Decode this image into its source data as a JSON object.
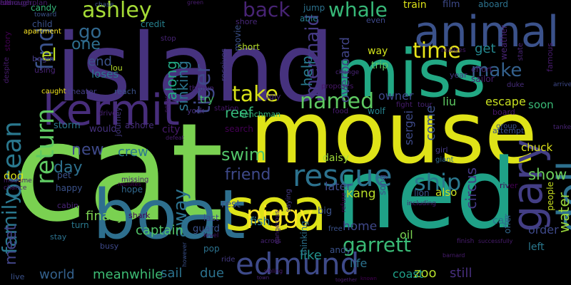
{
  "colors": {
    "background": "#000000",
    "palette": [
      "#440154",
      "#482878",
      "#3e4989",
      "#31688e",
      "#26828e",
      "#1f9e89",
      "#35b779",
      "#6ece58",
      "#b5de2b",
      "#fde725"
    ]
  },
  "words": [
    {
      "text": "cat",
      "color": "#7ad151",
      "weight": 1.0
    },
    {
      "text": "mouse",
      "color": "#dfe318",
      "weight": 0.92
    },
    {
      "text": "island",
      "color": "#46327e",
      "weight": 0.9
    },
    {
      "text": "ned",
      "color": "#1fa187",
      "weight": 0.87
    },
    {
      "text": "boat",
      "color": "#2e6f8e",
      "weight": 0.82
    },
    {
      "text": "miss",
      "color": "#22a884",
      "weight": 0.7
    },
    {
      "text": "sea",
      "color": "#dde318",
      "weight": 0.66
    },
    {
      "text": "animal",
      "color": "#3b528b",
      "weight": 0.6
    },
    {
      "text": "kermit",
      "color": "#472d7b",
      "weight": 0.55
    },
    {
      "text": "gary",
      "color": "#433e85",
      "weight": 0.52
    },
    {
      "text": "doll",
      "color": "#2d708e",
      "weight": 0.5
    },
    {
      "text": "rescue",
      "color": "#2c728e",
      "weight": 0.45
    },
    {
      "text": "edmund",
      "color": "#3e4a89",
      "weight": 0.42
    },
    {
      "text": "ocean",
      "color": "#2a788e",
      "weight": 0.38
    },
    {
      "text": "return",
      "color": "#5ec962",
      "weight": 0.35
    },
    {
      "text": "find",
      "color": "#3b528b",
      "weight": 0.35
    },
    {
      "text": "ashley",
      "color": "#a5db36",
      "weight": 0.34
    },
    {
      "text": "whale",
      "color": "#37b878",
      "weight": 0.33
    },
    {
      "text": "back",
      "color": "#482475",
      "weight": 0.33
    },
    {
      "text": "tiger",
      "color": "#3f4889",
      "weight": 0.32
    },
    {
      "text": "mermaid",
      "color": "#443983",
      "weight": 0.31
    },
    {
      "text": "take",
      "color": "#d8e219",
      "weight": 0.32
    },
    {
      "text": "named",
      "color": "#5ec962",
      "weight": 0.3
    },
    {
      "text": "make",
      "color": "#34618d",
      "weight": 0.3
    },
    {
      "text": "time",
      "color": "#e7e419",
      "weight": 0.3
    },
    {
      "text": "piggy",
      "color": "#fde725",
      "weight": 0.3
    },
    {
      "text": "ship",
      "color": "#2a788e",
      "weight": 0.32
    },
    {
      "text": "family",
      "color": "#2a788e",
      "weight": 0.3
    },
    {
      "text": "away",
      "color": "#2c728e",
      "weight": 0.3
    },
    {
      "text": "garrett",
      "color": "#3aba76",
      "weight": 0.3
    },
    {
      "text": "go",
      "color": "#31688e",
      "weight": 0.3
    },
    {
      "text": "el",
      "color": "#bddf26",
      "weight": 0.28
    },
    {
      "text": "one",
      "color": "#2e6e8e",
      "weight": 0.26
    },
    {
      "text": "new",
      "color": "#3e4989",
      "weight": 0.27
    },
    {
      "text": "day",
      "color": "#2d708e",
      "weight": 0.25
    },
    {
      "text": "meet",
      "color": "#414487",
      "weight": 0.25
    },
    {
      "text": "swim",
      "color": "#52c569",
      "weight": 0.24
    },
    {
      "text": "friend",
      "color": "#3e4989",
      "weight": 0.22
    },
    {
      "text": "show",
      "color": "#6ccd5a",
      "weight": 0.22
    },
    {
      "text": "along",
      "color": "#22a884",
      "weight": 0.23
    },
    {
      "text": "sinking",
      "color": "#2b758e",
      "weight": 0.22
    },
    {
      "text": "reef",
      "color": "#35b779",
      "weight": 0.22
    },
    {
      "text": "help",
      "color": "#29798e",
      "weight": 0.2
    },
    {
      "text": "overboard",
      "color": "#414487",
      "weight": 0.2
    },
    {
      "text": "come",
      "color": "#3b528b",
      "weight": 0.2
    },
    {
      "text": "sergei",
      "color": "#3e4a89",
      "weight": 0.2
    },
    {
      "text": "circus",
      "color": "#443a83",
      "weight": 0.2
    },
    {
      "text": "water",
      "color": "#9bd93c",
      "weight": 0.22
    },
    {
      "text": "crew",
      "color": "#2a778e",
      "weight": 0.2
    },
    {
      "text": "captain",
      "color": "#52c569",
      "weight": 0.18
    },
    {
      "text": "finally",
      "color": "#7ad151",
      "weight": 0.18
    },
    {
      "text": "like",
      "color": "#21918c",
      "weight": 0.2
    },
    {
      "text": "meanwhile",
      "color": "#3dbc74",
      "weight": 0.18
    },
    {
      "text": "sail",
      "color": "#2c738e",
      "weight": 0.18
    },
    {
      "text": "due",
      "color": "#2c728e",
      "weight": 0.18
    },
    {
      "text": "world",
      "color": "#34618d",
      "weight": 0.16
    },
    {
      "text": "life",
      "color": "#2c728e",
      "weight": 0.17
    },
    {
      "text": "zoo",
      "color": "#b5de2b",
      "weight": 0.16
    },
    {
      "text": "still",
      "color": "#472f7d",
      "weight": 0.17
    },
    {
      "text": "coast",
      "color": "#1fa088",
      "weight": 0.17
    },
    {
      "text": "order",
      "color": "#3e4989",
      "weight": 0.15
    },
    {
      "text": "liu",
      "color": "#5ec962",
      "weight": 0.16
    },
    {
      "text": "escape",
      "color": "#c8e020",
      "weight": 0.15
    },
    {
      "text": "soon",
      "color": "#3aba76",
      "weight": 0.16
    },
    {
      "text": "chuck",
      "color": "#dde318",
      "weight": 0.15
    },
    {
      "text": "owner",
      "color": "#3e4989",
      "weight": 0.15
    },
    {
      "text": "get",
      "color": "#24878e",
      "weight": 0.16
    },
    {
      "text": "way",
      "color": "#d2e21b",
      "weight": 0.16
    },
    {
      "text": "trip",
      "color": "#5ec962",
      "weight": 0.1
    },
    {
      "text": "kang",
      "color": "#b8de29",
      "weight": 0.1
    },
    {
      "text": "home",
      "color": "#3f4889",
      "weight": 0.13
    },
    {
      "text": "oil",
      "color": "#7ad151",
      "weight": 0.14
    },
    {
      "text": "rest",
      "color": "#3b528b",
      "weight": 0.12
    },
    {
      "text": "fish",
      "color": "#2a788e",
      "weight": 0.12
    },
    {
      "text": "later",
      "color": "#3f4889",
      "weight": 0.13
    },
    {
      "text": "daisy",
      "color": "#a0da39",
      "weight": 0.1
    },
    {
      "text": "city",
      "color": "#481b6d",
      "weight": 0.12
    },
    {
      "text": "would",
      "color": "#46327e",
      "weight": 0.12
    },
    {
      "text": "storm",
      "color": "#2a788e",
      "weight": 0.1
    },
    {
      "text": "ashore",
      "color": "#472d7b",
      "weight": 0.1
    },
    {
      "text": "search",
      "color": "#440154",
      "weight": 0.1
    },
    {
      "text": "station",
      "color": "#481769",
      "weight": 0.08
    },
    {
      "text": "henchman",
      "color": "#35b779",
      "weight": 0.08
    },
    {
      "text": "wolf",
      "color": "#25838e",
      "weight": 0.09
    },
    {
      "text": "food",
      "color": "#481c6e",
      "weight": 0.08
    },
    {
      "text": "ugly",
      "color": "#472c7a",
      "weight": 0.09
    },
    {
      "text": "try",
      "color": "#4ac16d",
      "weight": 0.11
    },
    {
      "text": "york",
      "color": "#472f7d",
      "weight": 0.09
    },
    {
      "text": "train",
      "color": "#dde318",
      "weight": 0.11
    },
    {
      "text": "film",
      "color": "#3e4a89",
      "weight": 0.1
    },
    {
      "text": "aboard",
      "color": "#2c728e",
      "weight": 0.1
    },
    {
      "text": "jump",
      "color": "#2c728e",
      "weight": 0.08
    },
    {
      "text": "shore",
      "color": "#482878",
      "weight": 0.08
    },
    {
      "text": "short",
      "color": "#b5de2b",
      "weight": 0.08
    },
    {
      "text": "movie",
      "color": "#3b518b",
      "weight": 0.08
    },
    {
      "text": "receives",
      "color": "#443b84",
      "weight": 0.07
    },
    {
      "text": "able",
      "color": "#287d8e",
      "weight": 0.08
    },
    {
      "text": "even",
      "color": "#3e4989",
      "weight": 0.07
    },
    {
      "text": "credit",
      "color": "#26818e",
      "weight": 0.08
    },
    {
      "text": "end",
      "color": "#3b528b",
      "weight": 0.14
    },
    {
      "text": "loses",
      "color": "#2a788e",
      "weight": 0.1
    },
    {
      "text": "lou",
      "color": "#b5de2b",
      "weight": 0.08
    },
    {
      "text": "candy",
      "color": "#35b779",
      "weight": 0.08
    },
    {
      "text": "child",
      "color": "#3b528b",
      "weight": 0.08
    },
    {
      "text": "begin",
      "color": "#443983",
      "weight": 0.07
    },
    {
      "text": "using",
      "color": "#482475",
      "weight": 0.07
    },
    {
      "text": "story",
      "color": "#440154",
      "weight": 0.06
    },
    {
      "text": "theater",
      "color": "#433e85",
      "weight": 0.08
    },
    {
      "text": "reach",
      "color": "#3b528b",
      "weight": 0.08
    },
    {
      "text": "drive",
      "color": "#482173",
      "weight": 0.06
    },
    {
      "text": "pet",
      "color": "#3b528b",
      "weight": 0.08
    },
    {
      "text": "dog",
      "color": "#d8e219",
      "weight": 0.1
    },
    {
      "text": "happy",
      "color": "#3b528b",
      "weight": 0.08
    },
    {
      "text": "journey",
      "color": "#443983",
      "weight": 0.07
    },
    {
      "text": "hope",
      "color": "#31688e",
      "weight": 0.08
    },
    {
      "text": "missing",
      "color": "#481b6d",
      "weight": 0.06
    },
    {
      "text": "cabin",
      "color": "#482475",
      "weight": 0.07
    },
    {
      "text": "turn",
      "color": "#2a788e",
      "weight": 0.08
    },
    {
      "text": "stay",
      "color": "#2c728e",
      "weight": 0.07
    },
    {
      "text": "shark",
      "color": "#440154",
      "weight": 0.07
    },
    {
      "text": "guard",
      "color": "#3b528b",
      "weight": 0.08
    },
    {
      "text": "busy",
      "color": "#3e4989",
      "weight": 0.07
    },
    {
      "text": "live",
      "color": "#3b528b",
      "weight": 0.07
    },
    {
      "text": "ride",
      "color": "#443983",
      "weight": 0.06
    },
    {
      "text": "pop",
      "color": "#2c728e",
      "weight": 0.08
    },
    {
      "text": "level",
      "color": "#481c6e",
      "weight": 0.06
    },
    {
      "text": "last",
      "color": "#3e4a89",
      "weight": 0.08
    },
    {
      "text": "big",
      "color": "#3b528b",
      "weight": 0.09
    },
    {
      "text": "lion",
      "color": "#3b528b",
      "weight": 0.07
    },
    {
      "text": "also",
      "color": "#c8e020",
      "weight": 0.09
    },
    {
      "text": "call",
      "color": "#2c728e",
      "weight": 0.08
    },
    {
      "text": "left",
      "color": "#2a788e",
      "weight": 0.08
    },
    {
      "text": "offer",
      "color": "#31688e",
      "weight": 0.07
    },
    {
      "text": "andy",
      "color": "#3b528b",
      "weight": 0.07
    },
    {
      "text": "free",
      "color": "#3b528b",
      "weight": 0.06
    },
    {
      "text": "across",
      "color": "#482475",
      "weight": 0.06
    },
    {
      "text": "thinking",
      "color": "#2c728e",
      "weight": 0.07
    },
    {
      "text": "river",
      "color": "#440154",
      "weight": 0.07
    },
    {
      "text": "people",
      "color": "#c8e020",
      "weight": 0.05
    },
    {
      "text": "group",
      "color": "#3b528b",
      "weight": 0.08
    },
    {
      "text": "board",
      "color": "#481769",
      "weight": 0.05
    },
    {
      "text": "tour",
      "color": "#482475",
      "weight": 0.06
    },
    {
      "text": "fight",
      "color": "#481c6e",
      "weight": 0.05
    },
    {
      "text": "sailor",
      "color": "#481c6e",
      "weight": 0.05
    },
    {
      "text": "year",
      "color": "#443983",
      "weight": 0.07
    },
    {
      "text": "duke",
      "color": "#472c7a",
      "weight": 0.06
    },
    {
      "text": "effort",
      "color": "#482475",
      "weight": 0.05
    },
    {
      "text": "girl",
      "color": "#443983",
      "weight": 0.07
    },
    {
      "text": "giant",
      "color": "#31688e",
      "weight": 0.05
    },
    {
      "text": "attempt",
      "color": "#3b528b",
      "weight": 0.06
    },
    {
      "text": "song",
      "color": "#3e4989",
      "weight": 0.05
    },
    {
      "text": "saying",
      "color": "#443983",
      "weight": 0.05
    },
    {
      "text": "dangerous",
      "color": "#482475",
      "weight": 0.07
    },
    {
      "text": "refuse",
      "color": "#440154",
      "weight": 0.05
    },
    {
      "text": "proposes",
      "color": "#481769",
      "weight": 0.05
    },
    {
      "text": "thrown",
      "color": "#482475",
      "weight": 0.05
    },
    {
      "text": "caught",
      "color": "#f1e51d",
      "weight": 0.05
    },
    {
      "text": "apartment",
      "color": "#fde725",
      "weight": 0.05
    },
    {
      "text": "toward",
      "color": "#3b528b",
      "weight": 0.05
    },
    {
      "text": "chase",
      "color": "#3b528b",
      "weight": 0.05
    },
    {
      "text": "weather",
      "color": "#482475",
      "weight": 0.04
    },
    {
      "text": "famous",
      "color": "#481c6e",
      "weight": 0.04
    },
    {
      "text": "arrive",
      "color": "#3e4989",
      "weight": 0.05
    },
    {
      "text": "tanker",
      "color": "#482475",
      "weight": 0.05
    },
    {
      "text": "realizes",
      "color": "#481c6e",
      "weight": 0.04
    },
    {
      "text": "change",
      "color": "#482475",
      "weight": 0.04
    },
    {
      "text": "madame",
      "color": "#481c6e",
      "weight": 0.04
    },
    {
      "text": "chance",
      "color": "#481c6e",
      "weight": 0.04
    },
    {
      "text": "reunites",
      "color": "#440154",
      "weight": 0.04
    },
    {
      "text": "defeat",
      "color": "#481c6e",
      "weight": 0.04
    },
    {
      "text": "never",
      "color": "#481c6e",
      "weight": 0.04
    },
    {
      "text": "despite",
      "color": "#481c6e",
      "weight": 0.04
    },
    {
      "text": "however",
      "color": "#3b528b",
      "weight": 0.08
    },
    {
      "text": "town",
      "color": "#482475",
      "weight": 0.04
    },
    {
      "text": "together",
      "color": "#481c6e",
      "weight": 0.04
    },
    {
      "text": "known",
      "color": "#440154",
      "weight": 0.04
    },
    {
      "text": "sibling",
      "color": "#481c6e",
      "weight": 0.04
    },
    {
      "text": "including",
      "color": "#481c6e",
      "weight": 0.04
    },
    {
      "text": "barnard",
      "color": "#481c6e",
      "weight": 0.04
    },
    {
      "text": "successfully",
      "color": "#481c6e",
      "weight": 0.04
    },
    {
      "text": "finish",
      "color": "#481c6e",
      "weight": 0.04
    },
    {
      "text": "stop",
      "color": "#482475",
      "weight": 0.05
    },
    {
      "text": "green",
      "color": "#481c6e",
      "weight": 0.04
    },
    {
      "text": "state",
      "color": "#482475",
      "weight": 0.04
    },
    {
      "text": "although",
      "color": "#482475",
      "weight": 0.05
    },
    {
      "text": "car",
      "color": "#440154",
      "weight": 0.06
    },
    {
      "text": "fun",
      "color": "#481c6e",
      "weight": 0.04
    },
    {
      "text": "managerplan",
      "color": "#481c6e",
      "weight": 0.05
    }
  ]
}
